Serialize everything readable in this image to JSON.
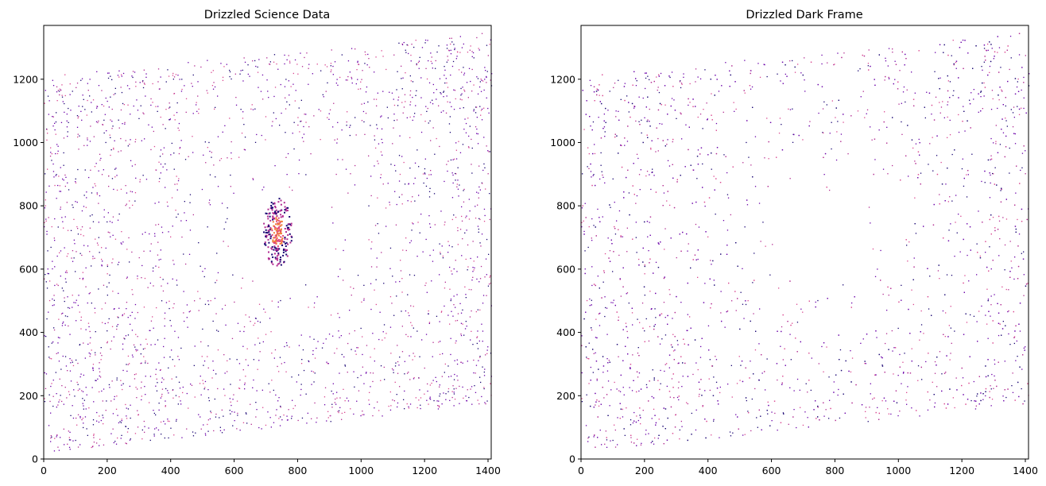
{
  "chart_data": [
    {
      "type": "heatmap",
      "title": "Drizzled Science Data",
      "xlim": [
        0,
        1410
      ],
      "ylim": [
        0,
        1370
      ],
      "xticks": [
        0,
        200,
        400,
        600,
        800,
        1000,
        1200,
        1400
      ],
      "yticks": [
        0,
        200,
        400,
        600,
        800,
        1000,
        1200
      ],
      "footprint": [
        [
          0,
          20
        ],
        [
          1410,
          175
        ],
        [
          1410,
          1350
        ],
        [
          0,
          1210
        ]
      ],
      "hotspot": {
        "x": 735,
        "y": 720
      },
      "colormap": "plasma",
      "grid": false
    },
    {
      "type": "heatmap",
      "title": "Drizzled Dark Frame",
      "xlim": [
        0,
        1410
      ],
      "ylim": [
        0,
        1370
      ],
      "xticks": [
        0,
        200,
        400,
        600,
        800,
        1000,
        1200,
        1400
      ],
      "yticks": [
        0,
        200,
        400,
        600,
        800,
        1000,
        1200
      ],
      "footprint": [
        [
          0,
          20
        ],
        [
          1410,
          175
        ],
        [
          1410,
          1350
        ],
        [
          0,
          1210
        ]
      ],
      "hotspot": null,
      "colormap": "plasma",
      "grid": false
    }
  ],
  "colors": {
    "dot_dark": "#1a0673",
    "dot_purple": "#6a00a8",
    "dot_magenta": "#b12a90",
    "dot_pink": "#d9468f",
    "hot_orange": "#f0803c",
    "hot_pink": "#e2457a"
  }
}
